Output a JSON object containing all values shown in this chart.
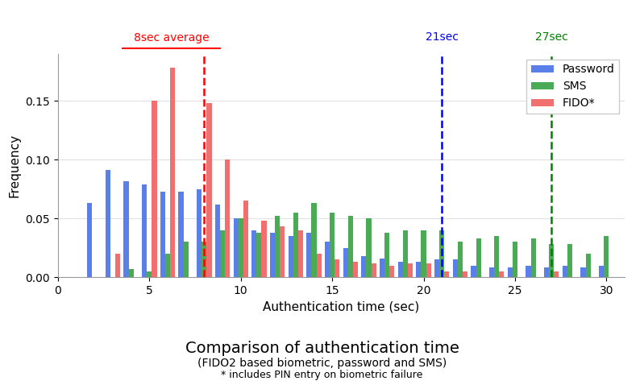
{
  "x_positions": [
    2,
    3,
    4,
    5,
    6,
    7,
    8,
    9,
    10,
    11,
    12,
    13,
    14,
    15,
    16,
    17,
    18,
    19,
    20,
    21,
    22,
    23,
    24,
    25,
    26,
    27,
    28,
    29,
    30
  ],
  "password": [
    0.063,
    0.091,
    0.082,
    0.079,
    0.073,
    0.073,
    0.075,
    0.062,
    0.05,
    0.04,
    0.038,
    0.035,
    0.038,
    0.03,
    0.025,
    0.018,
    0.016,
    0.013,
    0.013,
    0.015,
    0.015,
    0.01,
    0.008,
    0.008,
    0.01,
    0.008,
    0.01,
    0.008,
    0.01
  ],
  "sms": [
    0.0,
    0.0,
    0.007,
    0.005,
    0.02,
    0.03,
    0.03,
    0.04,
    0.05,
    0.038,
    0.052,
    0.055,
    0.063,
    0.055,
    0.052,
    0.05,
    0.038,
    0.04,
    0.04,
    0.04,
    0.03,
    0.033,
    0.035,
    0.03,
    0.033,
    0.028,
    0.028,
    0.02,
    0.035
  ],
  "fido": [
    0.0,
    0.02,
    0.0,
    0.15,
    0.178,
    0.0,
    0.148,
    0.1,
    0.065,
    0.048,
    0.043,
    0.04,
    0.02,
    0.015,
    0.013,
    0.012,
    0.01,
    0.012,
    0.012,
    0.005,
    0.005,
    0.0,
    0.005,
    0.0,
    0.0,
    0.005,
    0.0,
    0.0,
    0.0
  ],
  "bar_colors": {
    "password": "#5b7fe8",
    "sms": "#4aaa55",
    "fido": "#f07070"
  },
  "vline_red_x": 8,
  "vline_blue_x": 21,
  "vline_green_x": 27,
  "annotation_red": "8sec average",
  "annotation_blue": "21sec",
  "annotation_green": "27sec",
  "xlabel": "Authentication time (sec)",
  "ylabel": "Frequency",
  "xlim": [
    1,
    31
  ],
  "ylim": [
    0,
    0.19
  ],
  "xticks": [
    0,
    5,
    10,
    15,
    20,
    25,
    30
  ],
  "yticks": [
    0.0,
    0.05,
    0.1,
    0.15
  ],
  "title": "Comparison of authentication time",
  "subtitle1": "(FIDO2 based biometric, password and SMS)",
  "subtitle2": "* includes PIN entry on biometric failure",
  "legend_labels": [
    "Password",
    "SMS",
    "FIDO*"
  ],
  "bar_width": 0.27,
  "background_color": "#ffffff"
}
